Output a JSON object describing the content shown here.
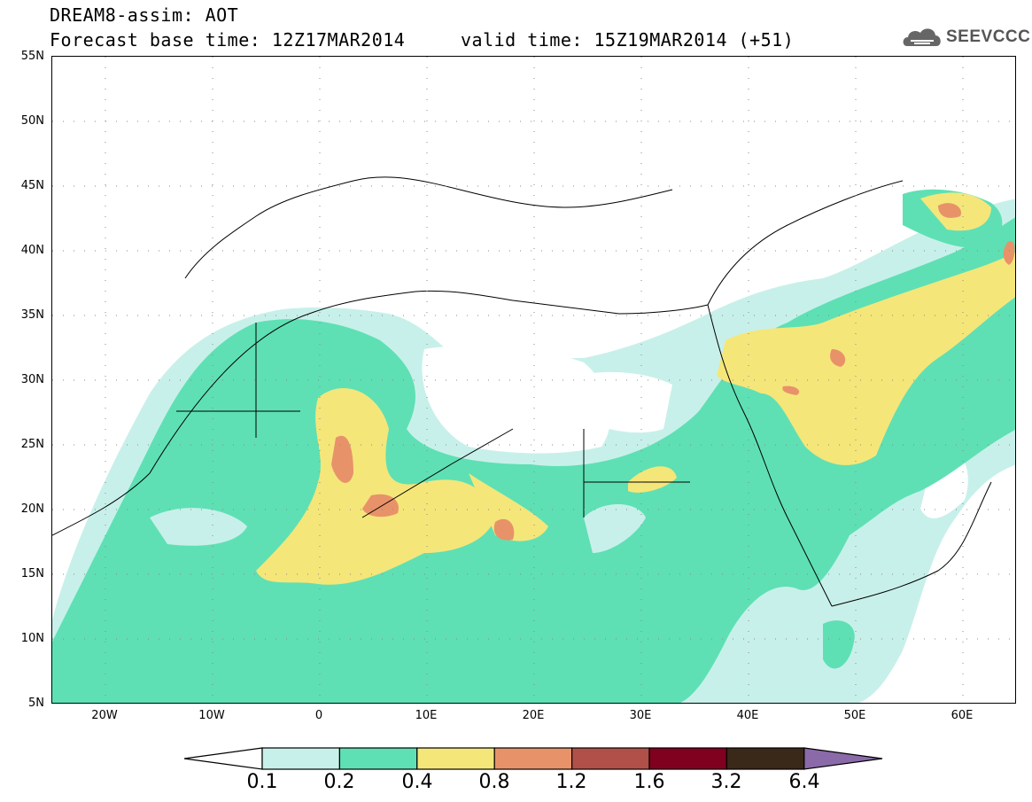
{
  "header": {
    "line1": "DREAM8-assim: AOT",
    "line2": "Forecast base time: 12Z17MAR2014     valid time: 15Z19MAR2014 (+51)"
  },
  "logo": {
    "text": "SEEVCCC",
    "icon": "cloud-icon"
  },
  "map": {
    "lon_range": [
      -25,
      65
    ],
    "lat_range": [
      5,
      55
    ],
    "lat_labels": [
      "55N",
      "50N",
      "45N",
      "40N",
      "35N",
      "30N",
      "25N",
      "20N",
      "15N",
      "10N",
      "5N"
    ],
    "lon_labels": [
      "20W",
      "10W",
      "0",
      "10E",
      "20E",
      "30E",
      "40E",
      "50E",
      "60E"
    ]
  },
  "colorbar": {
    "labels": [
      "0.1",
      "0.2",
      "0.4",
      "0.8",
      "1.2",
      "1.6",
      "3.2",
      "6.4"
    ],
    "colors": [
      "#ffffff",
      "#c8f0ea",
      "#5ee0b4",
      "#f5e67a",
      "#e8926a",
      "#b05048",
      "#800020",
      "#3a2818",
      "#8a6aa8"
    ]
  },
  "colors": {
    "c01": "#c8f0ea",
    "c02": "#5ee0b4",
    "c04": "#f5e67a",
    "c08": "#e8926a",
    "c12": "#b05048"
  }
}
